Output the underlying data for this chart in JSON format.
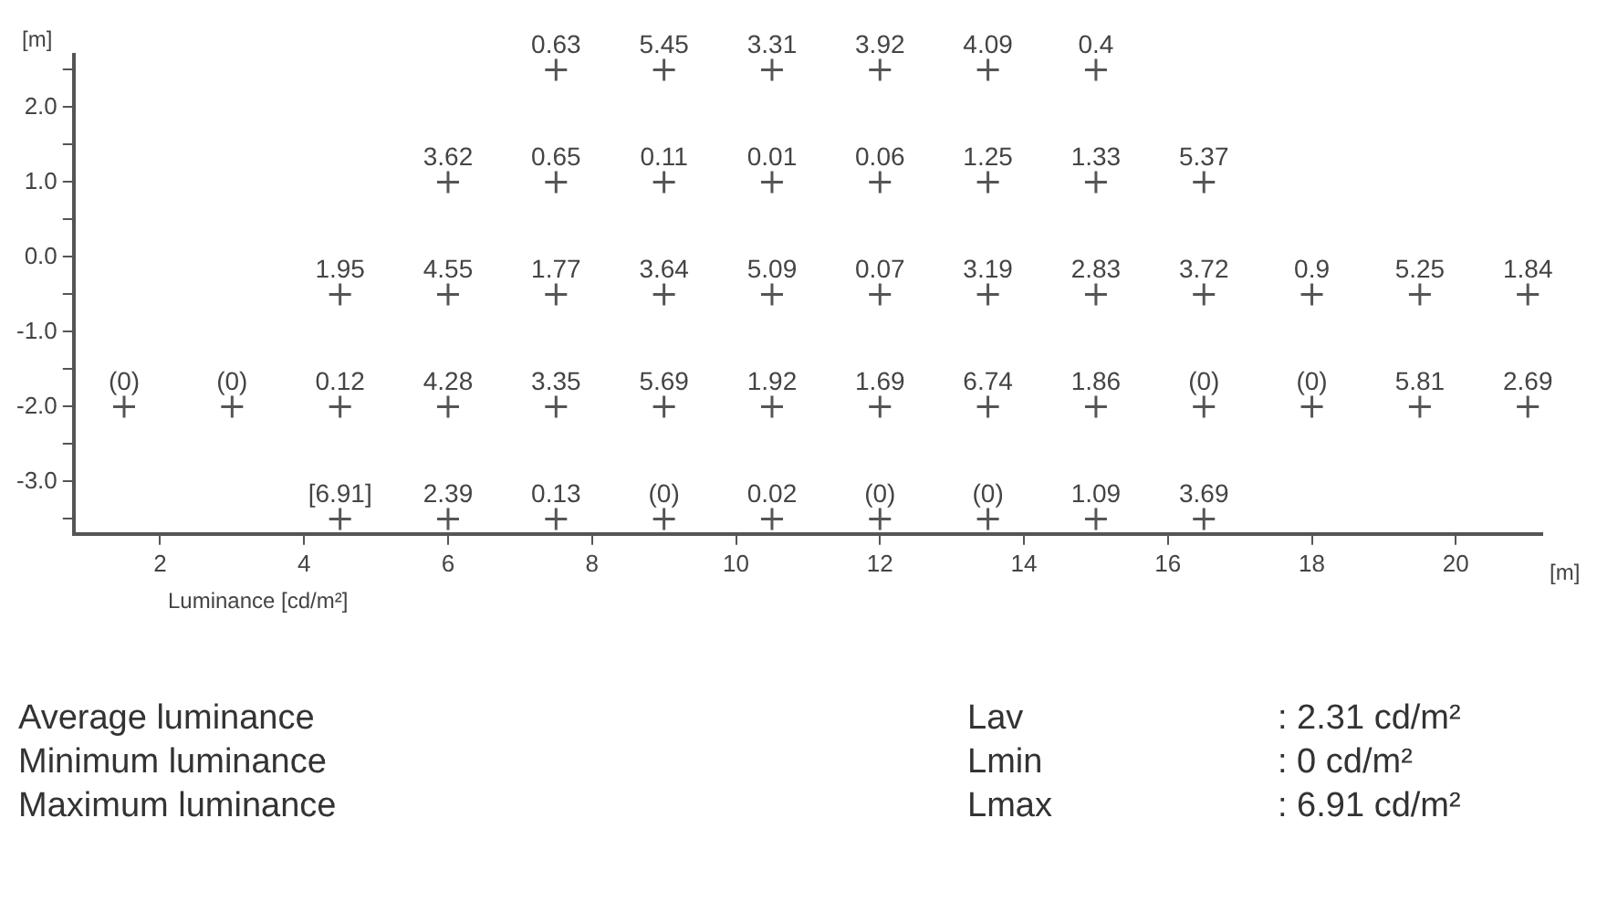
{
  "chart_data": {
    "type": "scatter",
    "ylabel": "[m]",
    "xlabel": "[m]",
    "x": [
      7.5,
      9,
      10.5,
      12,
      13.5,
      15,
      6,
      7.5,
      9,
      10.5,
      12,
      13.5,
      15,
      16.5,
      4.5,
      6,
      7.5,
      9,
      10.5,
      12,
      13.5,
      15,
      16.5,
      18,
      19.5,
      21,
      1.5,
      3,
      4.5,
      6,
      7.5,
      9,
      10.5,
      12,
      13.5,
      15,
      16.5,
      18,
      19.5,
      21,
      4.5,
      6,
      7.5,
      9,
      10.5,
      12,
      13.5,
      15,
      16.5
    ],
    "values": [
      2.5,
      2.5,
      2.5,
      2.5,
      2.5,
      2.5,
      1,
      1,
      1,
      1,
      1,
      1,
      1,
      1,
      -0.5,
      -0.5,
      -0.5,
      -0.5,
      -0.5,
      -0.5,
      -0.5,
      -0.5,
      -0.5,
      -0.5,
      -0.5,
      -0.5,
      -2,
      -2,
      -2,
      -2,
      -2,
      -2,
      -2,
      -2,
      -2,
      -2,
      -2,
      -2,
      -2,
      -2,
      -3.5,
      -3.5,
      -3.5,
      -3.5,
      -3.5,
      -3.5,
      -3.5,
      -3.5,
      -3.5
    ],
    "color": "#555555",
    "marker": "cross",
    "xlim": [
      0.8,
      21.2
    ],
    "xticks": [
      2,
      4,
      6,
      8,
      10,
      12,
      14,
      16,
      18,
      20
    ],
    "ylim": [
      -3.7,
      2.7
    ],
    "yticks": [
      {
        "value": -3.5,
        "label": null
      },
      {
        "value": -3,
        "label": "-3.0"
      },
      {
        "value": -2.5,
        "label": null
      },
      {
        "value": -2,
        "label": "-2.0"
      },
      {
        "value": -1.5,
        "label": null
      },
      {
        "value": -1,
        "label": "-1.0"
      },
      {
        "value": -0.5,
        "label": null
      },
      {
        "value": 0,
        "label": "0.0"
      },
      {
        "value": 0.5,
        "label": null
      },
      {
        "value": 1,
        "label": "1.0"
      },
      {
        "value": 1.5,
        "label": null
      },
      {
        "value": 2,
        "label": "2.0"
      },
      {
        "value": 2.5,
        "label": null
      }
    ],
    "grid": false,
    "legend": false,
    "annotations": [
      "Luminance [cd/m²]",
      "Average luminance",
      "Lav",
      ": 2.31 cd/m²",
      "Minimum luminance",
      "Lmin",
      ": 0 cd/m²",
      "Maximum luminance",
      "Lmax",
      ": 6.91 cd/m²",
      {
        "text": "0.63",
        "x": 7.5,
        "y": 2.5
      },
      {
        "text": "5.45",
        "x": 9,
        "y": 2.5
      },
      {
        "text": "3.31",
        "x": 10.5,
        "y": 2.5
      },
      {
        "text": "3.92",
        "x": 12,
        "y": 2.5
      },
      {
        "text": "4.09",
        "x": 13.5,
        "y": 2.5
      },
      {
        "text": "0.4",
        "x": 15,
        "y": 2.5
      },
      {
        "text": "3.62",
        "x": 6,
        "y": 1
      },
      {
        "text": "0.65",
        "x": 7.5,
        "y": 1
      },
      {
        "text": "0.11",
        "x": 9,
        "y": 1
      },
      {
        "text": "0.01",
        "x": 10.5,
        "y": 1
      },
      {
        "text": "0.06",
        "x": 12,
        "y": 1
      },
      {
        "text": "1.25",
        "x": 13.5,
        "y": 1
      },
      {
        "text": "1.33",
        "x": 15,
        "y": 1
      },
      {
        "text": "5.37",
        "x": 16.5,
        "y": 1
      },
      {
        "text": "1.95",
        "x": 4.5,
        "y": -0.5
      },
      {
        "text": "4.55",
        "x": 6,
        "y": -0.5
      },
      {
        "text": "1.77",
        "x": 7.5,
        "y": -0.5
      },
      {
        "text": "3.64",
        "x": 9,
        "y": -0.5
      },
      {
        "text": "5.09",
        "x": 10.5,
        "y": -0.5
      },
      {
        "text": "0.07",
        "x": 12,
        "y": -0.5
      },
      {
        "text": "3.19",
        "x": 13.5,
        "y": -0.5
      },
      {
        "text": "2.83",
        "x": 15,
        "y": -0.5
      },
      {
        "text": "3.72",
        "x": 16.5,
        "y": -0.5
      },
      {
        "text": "0.9",
        "x": 18,
        "y": -0.5
      },
      {
        "text": "5.25",
        "x": 19.5,
        "y": -0.5
      },
      {
        "text": "1.84",
        "x": 21,
        "y": -0.5
      },
      {
        "text": "(0)",
        "x": 1.5,
        "y": -2
      },
      {
        "text": "(0)",
        "x": 3,
        "y": -2
      },
      {
        "text": "0.12",
        "x": 4.5,
        "y": -2
      },
      {
        "text": "4.28",
        "x": 6,
        "y": -2
      },
      {
        "text": "3.35",
        "x": 7.5,
        "y": -2
      },
      {
        "text": "5.69",
        "x": 9,
        "y": -2
      },
      {
        "text": "1.92",
        "x": 10.5,
        "y": -2
      },
      {
        "text": "1.69",
        "x": 12,
        "y": -2
      },
      {
        "text": "6.74",
        "x": 13.5,
        "y": -2
      },
      {
        "text": "1.86",
        "x": 15,
        "y": -2
      },
      {
        "text": "(0)",
        "x": 16.5,
        "y": -2
      },
      {
        "text": "(0)",
        "x": 18,
        "y": -2
      },
      {
        "text": "5.81",
        "x": 19.5,
        "y": -2
      },
      {
        "text": "2.69",
        "x": 21,
        "y": -2
      },
      {
        "text": "[6.91]",
        "x": 4.5,
        "y": -3.5
      },
      {
        "text": "2.39",
        "x": 6,
        "y": -3.5
      },
      {
        "text": "0.13",
        "x": 7.5,
        "y": -3.5
      },
      {
        "text": "(0)",
        "x": 9,
        "y": -3.5
      },
      {
        "text": "0.02",
        "x": 10.5,
        "y": -3.5
      },
      {
        "text": "(0)",
        "x": 12,
        "y": -3.5
      },
      {
        "text": "(0)",
        "x": 13.5,
        "y": -3.5
      },
      {
        "text": "1.09",
        "x": 15,
        "y": -3.5
      },
      {
        "text": "3.69",
        "x": 16.5,
        "y": -3.5
      }
    ]
  }
}
